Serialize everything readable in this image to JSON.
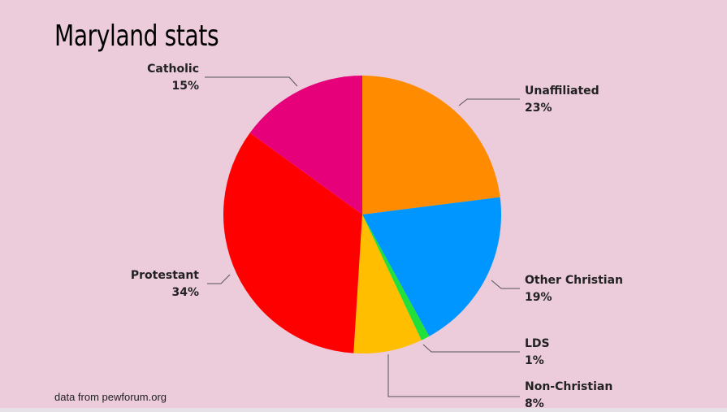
{
  "slide": {
    "title": "Maryland stats",
    "source_note": "data from pewforum.org"
  },
  "chart_data": {
    "type": "pie",
    "title": "Maryland stats",
    "start": "12 o'clock",
    "direction": "clockwise",
    "slices": [
      {
        "label": "Unaffiliated",
        "value": 23,
        "display": "23%",
        "color": "#ff8c00"
      },
      {
        "label": "Other Christian",
        "value": 19,
        "display": "19%",
        "color": "#0096ff"
      },
      {
        "label": "LDS",
        "value": 1,
        "display": "1%",
        "color": "#22e03a"
      },
      {
        "label": "Non-Christian",
        "value": 8,
        "display": "8%",
        "color": "#ffbf00"
      },
      {
        "label": "Protestant",
        "value": 34,
        "display": "34%",
        "color": "#ff0000"
      },
      {
        "label": "Catholic",
        "value": 15,
        "display": "15%",
        "color": "#e6007a"
      }
    ]
  }
}
